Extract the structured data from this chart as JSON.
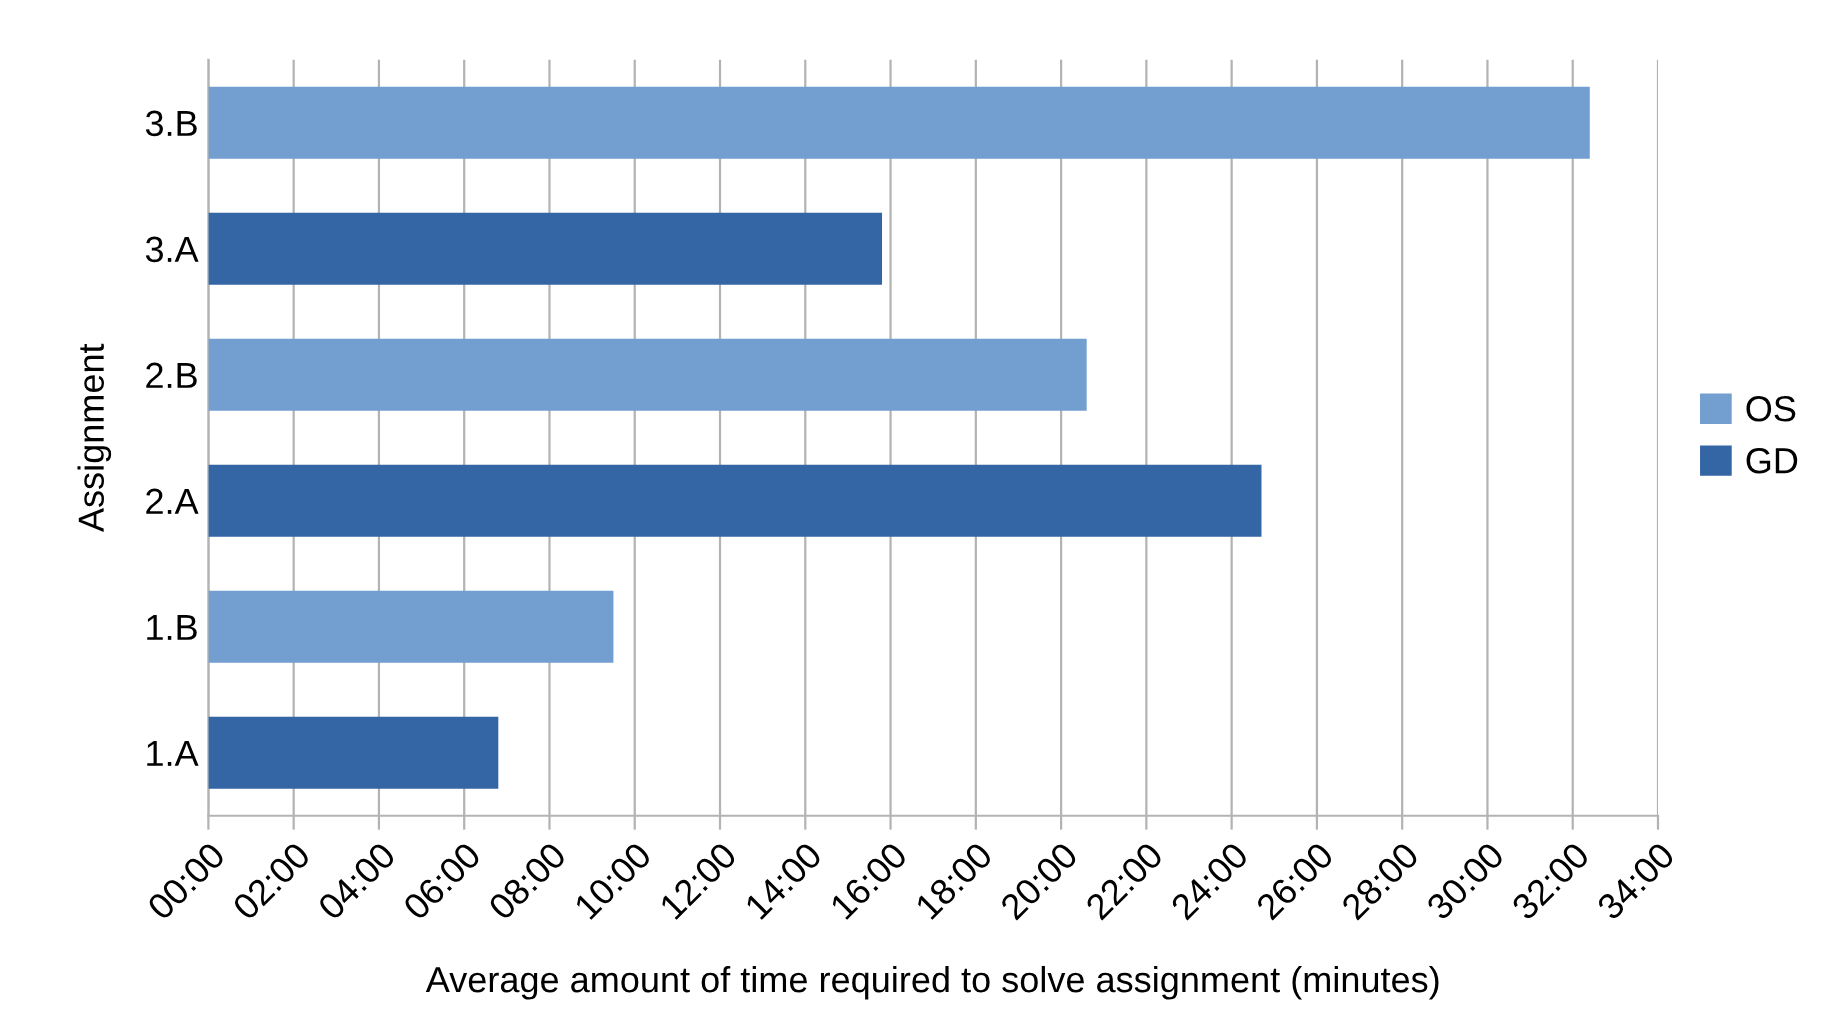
{
  "chart_data": {
    "type": "bar",
    "orientation": "horizontal",
    "categories": [
      "3.B",
      "3.A",
      "2.B",
      "2.A",
      "1.B",
      "1.A"
    ],
    "series": [
      {
        "name": "OS",
        "color": "#729fcf",
        "values": [
          32.4,
          null,
          20.6,
          null,
          9.5,
          null
        ]
      },
      {
        "name": "GD",
        "color": "#3465a4",
        "values": [
          null,
          15.8,
          null,
          24.7,
          null,
          6.8
        ]
      }
    ],
    "xlabel": "Average amount of time required to solve assignment (minutes)",
    "ylabel": "Assignment",
    "xlim": [
      0,
      34
    ],
    "xticks": [
      {
        "value": 0,
        "label": "00:00"
      },
      {
        "value": 2,
        "label": "02:00"
      },
      {
        "value": 4,
        "label": "04:00"
      },
      {
        "value": 6,
        "label": "06:00"
      },
      {
        "value": 8,
        "label": "08:00"
      },
      {
        "value": 10,
        "label": "10:00"
      },
      {
        "value": 12,
        "label": "12:00"
      },
      {
        "value": 14,
        "label": "14:00"
      },
      {
        "value": 16,
        "label": "16:00"
      },
      {
        "value": 18,
        "label": "18:00"
      },
      {
        "value": 20,
        "label": "20:00"
      },
      {
        "value": 22,
        "label": "22:00"
      },
      {
        "value": 24,
        "label": "24:00"
      },
      {
        "value": 26,
        "label": "26:00"
      },
      {
        "value": 28,
        "label": "28:00"
      },
      {
        "value": 30,
        "label": "30:00"
      },
      {
        "value": 32,
        "label": "32:00"
      },
      {
        "value": 34,
        "label": "34:00"
      }
    ],
    "grid": "x",
    "legend": "right"
  }
}
